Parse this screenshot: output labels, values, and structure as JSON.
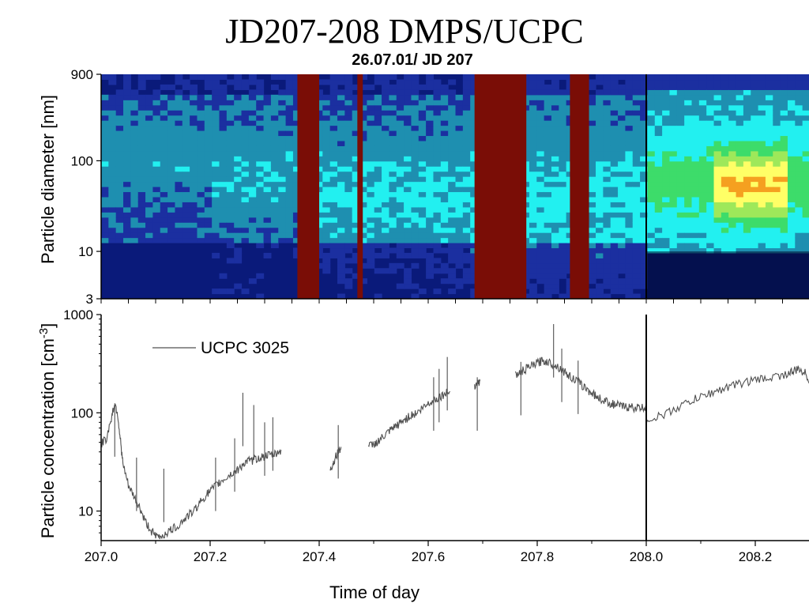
{
  "page": {
    "title": "JD207-208 DMPS/UCPC"
  },
  "chart_data": [
    {
      "type": "heatmap",
      "title": "26.07.01/ JD 207",
      "ylabel": "Particle diameter [nm]",
      "yscale": "log",
      "ylim": [
        3,
        900
      ],
      "y_ticks": [
        {
          "value": 3,
          "label": "3"
        },
        {
          "value": 10,
          "label": "10"
        },
        {
          "value": 100,
          "label": "100"
        },
        {
          "value": 900,
          "label": "900"
        }
      ],
      "xlim": [
        207.0,
        208.3
      ],
      "missing_data_color": "#7a0d06",
      "colors": {
        "background": "#0a1a7a",
        "blue": "#1b2fa0",
        "teal": "#1e8fb0",
        "cyan": "#22f0f0",
        "green": "#3ddc6a",
        "light_green": "#9ee85a",
        "yellow": "#ffff66",
        "orange": "#f5a020",
        "red": "#e02010",
        "dark": "#000a2a"
      },
      "missing_data_intervals": [
        [
          207.36,
          207.4
        ],
        [
          207.47,
          207.48
        ],
        [
          207.685,
          207.78
        ],
        [
          207.86,
          207.895
        ]
      ],
      "divider_x": 208.0
    },
    {
      "type": "line",
      "xlabel": "Time of day",
      "ylabel": "Particle concentration [cm⁻³]",
      "ylabel_main": "Particle concentration [cm",
      "ylabel_exp": "-3",
      "ylabel_close": "]",
      "yscale": "log",
      "ylim": [
        5,
        1000
      ],
      "xlim": [
        207.0,
        208.3
      ],
      "x_ticks": [
        {
          "value": 207.0,
          "label": "207.0"
        },
        {
          "value": 207.2,
          "label": "207.2"
        },
        {
          "value": 207.4,
          "label": "207.4"
        },
        {
          "value": 207.6,
          "label": "207.6"
        },
        {
          "value": 207.8,
          "label": "207.8"
        },
        {
          "value": 208.0,
          "label": "208.0"
        },
        {
          "value": 208.2,
          "label": "208.2"
        }
      ],
      "y_ticks": [
        {
          "value": 10,
          "label": "10"
        },
        {
          "value": 100,
          "label": "100"
        },
        {
          "value": 1000,
          "label": "1000"
        }
      ],
      "divider_x": 208.0,
      "series": [
        {
          "name": "UCPC 3025",
          "color": "#505050",
          "segments": [
            [
              [
                207.0,
                48
              ],
              [
                207.01,
                55
              ],
              [
                207.02,
                95
              ],
              [
                207.025,
                125
              ],
              [
                207.03,
                100
              ],
              [
                207.035,
                55
              ],
              [
                207.04,
                30
              ],
              [
                207.05,
                18
              ],
              [
                207.06,
                14
              ],
              [
                207.07,
                11
              ],
              [
                207.08,
                8
              ],
              [
                207.09,
                6.5
              ],
              [
                207.1,
                5.5
              ],
              [
                207.11,
                5.5
              ],
              [
                207.12,
                6
              ],
              [
                207.13,
                6.5
              ],
              [
                207.14,
                7
              ],
              [
                207.15,
                8
              ],
              [
                207.16,
                9
              ],
              [
                207.17,
                10
              ],
              [
                207.18,
                12
              ],
              [
                207.19,
                14
              ],
              [
                207.2,
                16
              ],
              [
                207.21,
                18
              ],
              [
                207.22,
                20
              ],
              [
                207.23,
                22
              ],
              [
                207.24,
                24
              ],
              [
                207.25,
                26
              ],
              [
                207.26,
                30
              ],
              [
                207.27,
                32
              ],
              [
                207.28,
                33
              ],
              [
                207.29,
                35
              ],
              [
                207.3,
                36
              ],
              [
                207.31,
                37
              ],
              [
                207.32,
                38
              ],
              [
                207.33,
                42
              ]
            ],
            [
              [
                207.42,
                25
              ],
              [
                207.425,
                30
              ],
              [
                207.43,
                35
              ],
              [
                207.435,
                40
              ],
              [
                207.44,
                45
              ]
            ],
            [
              [
                207.49,
                45
              ],
              [
                207.5,
                48
              ],
              [
                207.51,
                52
              ],
              [
                207.52,
                58
              ],
              [
                207.53,
                65
              ],
              [
                207.54,
                72
              ],
              [
                207.55,
                80
              ],
              [
                207.56,
                88
              ],
              [
                207.57,
                95
              ],
              [
                207.58,
                100
              ],
              [
                207.59,
                112
              ],
              [
                207.6,
                125
              ],
              [
                207.61,
                135
              ],
              [
                207.62,
                145
              ],
              [
                207.63,
                155
              ],
              [
                207.64,
                165
              ]
            ],
            [
              [
                207.685,
                190
              ],
              [
                207.69,
                200
              ],
              [
                207.695,
                210
              ]
            ],
            [
              [
                207.76,
                240
              ],
              [
                207.77,
                260
              ],
              [
                207.78,
                280
              ],
              [
                207.79,
                300
              ],
              [
                207.8,
                320
              ],
              [
                207.81,
                340
              ],
              [
                207.82,
                330
              ],
              [
                207.83,
                310
              ],
              [
                207.84,
                290
              ],
              [
                207.85,
                260
              ],
              [
                207.86,
                235
              ],
              [
                207.87,
                215
              ],
              [
                207.88,
                195
              ],
              [
                207.89,
                175
              ],
              [
                207.9,
                160
              ],
              [
                207.91,
                145
              ],
              [
                207.92,
                135
              ],
              [
                207.93,
                128
              ],
              [
                207.94,
                122
              ],
              [
                207.95,
                118
              ],
              [
                207.96,
                115
              ],
              [
                207.97,
                114
              ],
              [
                207.98,
                113
              ],
              [
                207.99,
                112
              ],
              [
                208.0,
                112
              ]
            ],
            [
              [
                208.0,
                85
              ],
              [
                208.02,
                90
              ],
              [
                208.04,
                100
              ],
              [
                208.06,
                115
              ],
              [
                208.08,
                130
              ],
              [
                208.1,
                145
              ],
              [
                208.12,
                160
              ],
              [
                208.14,
                175
              ],
              [
                208.16,
                190
              ],
              [
                208.18,
                205
              ],
              [
                208.2,
                215
              ],
              [
                208.22,
                225
              ],
              [
                208.24,
                235
              ],
              [
                208.26,
                250
              ],
              [
                208.27,
                265
              ],
              [
                208.28,
                275
              ],
              [
                208.29,
                260
              ],
              [
                208.3,
                210
              ]
            ]
          ],
          "spikes": [
            [
              207.025,
              125
            ],
            [
              207.065,
              35
            ],
            [
              207.115,
              27
            ],
            [
              207.21,
              35
            ],
            [
              207.245,
              55
            ],
            [
              207.26,
              160
            ],
            [
              207.28,
              120
            ],
            [
              207.3,
              80
            ],
            [
              207.315,
              90
            ],
            [
              207.435,
              75
            ],
            [
              207.61,
              230
            ],
            [
              207.62,
              280
            ],
            [
              207.635,
              370
            ],
            [
              207.69,
              230
            ],
            [
              207.77,
              330
            ],
            [
              207.83,
              800
            ],
            [
              207.845,
              450
            ],
            [
              207.875,
              340
            ]
          ]
        }
      ]
    }
  ]
}
